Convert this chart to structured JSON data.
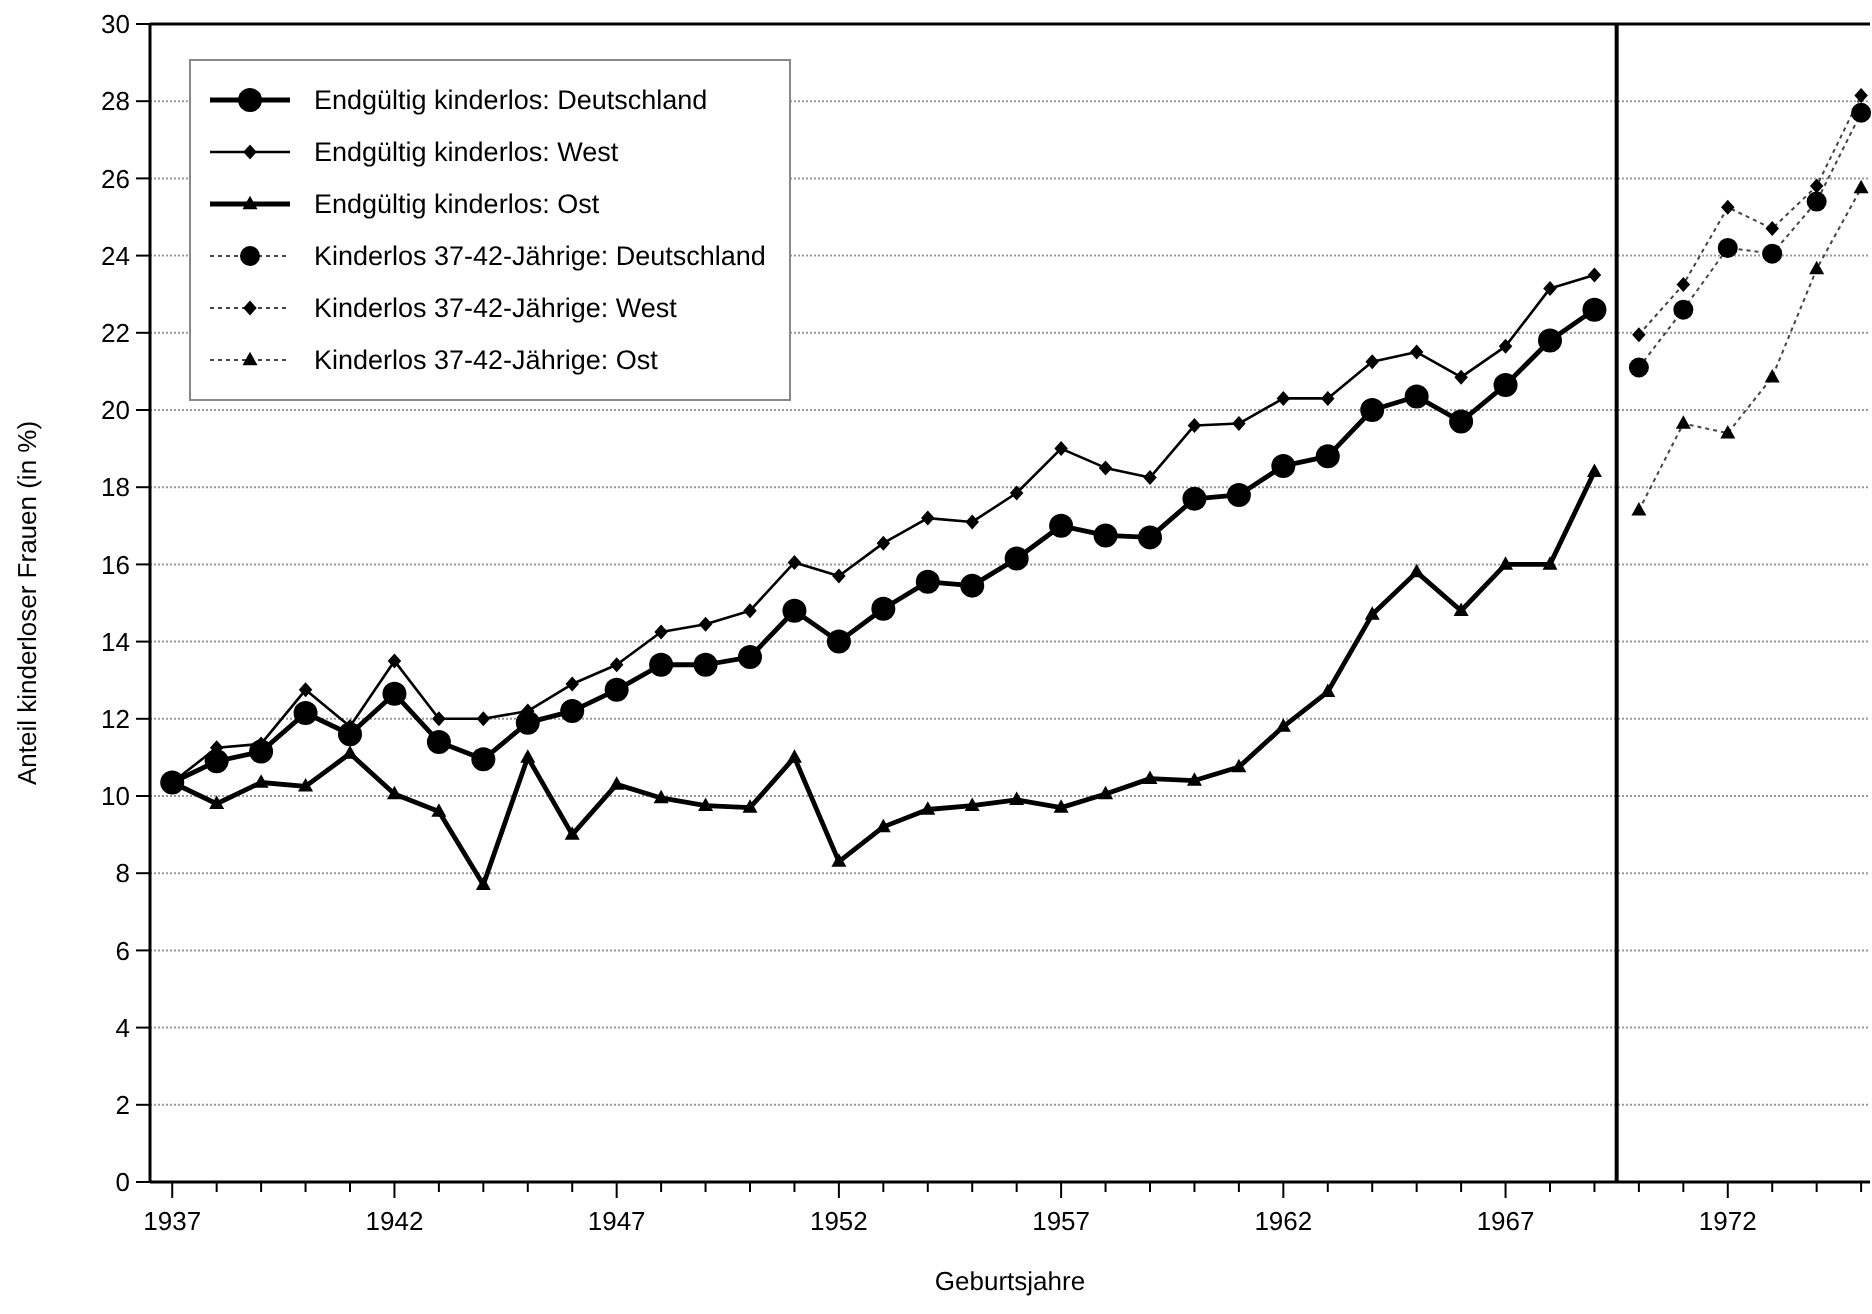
{
  "chart_data": {
    "type": "line",
    "xlabel": "Geburtsjahre",
    "ylabel": "Anteil kinderloser Frauen (in %)",
    "xlim": [
      1936.5,
      1975.2
    ],
    "ylim": [
      0,
      30
    ],
    "xticks": [
      1937,
      {
        "value": 1938,
        "label": null
      },
      {
        "value": 1939,
        "label": null
      },
      {
        "value": 1940,
        "label": null
      },
      {
        "value": 1941,
        "label": null
      },
      1942,
      {
        "value": 1943,
        "label": null
      },
      {
        "value": 1944,
        "label": null
      },
      {
        "value": 1945,
        "label": null
      },
      {
        "value": 1946,
        "label": null
      },
      1947,
      {
        "value": 1948,
        "label": null
      },
      {
        "value": 1949,
        "label": null
      },
      {
        "value": 1950,
        "label": null
      },
      {
        "value": 1951,
        "label": null
      },
      1952,
      {
        "value": 1953,
        "label": null
      },
      {
        "value": 1954,
        "label": null
      },
      {
        "value": 1955,
        "label": null
      },
      {
        "value": 1956,
        "label": null
      },
      1957,
      {
        "value": 1958,
        "label": null
      },
      {
        "value": 1959,
        "label": null
      },
      {
        "value": 1960,
        "label": null
      },
      {
        "value": 1961,
        "label": null
      },
      1962,
      {
        "value": 1963,
        "label": null
      },
      {
        "value": 1964,
        "label": null
      },
      {
        "value": 1965,
        "label": null
      },
      {
        "value": 1966,
        "label": null
      },
      1967,
      {
        "value": 1968,
        "label": null
      },
      {
        "value": 1969,
        "label": null
      },
      {
        "value": 1970,
        "label": null
      },
      {
        "value": 1971,
        "label": null
      },
      1972,
      {
        "value": 1973,
        "label": null
      },
      {
        "value": 1974,
        "label": null
      },
      {
        "value": 1975,
        "label": null
      }
    ],
    "yticks": [
      0,
      2,
      4,
      6,
      8,
      10,
      12,
      14,
      16,
      18,
      20,
      22,
      24,
      26,
      28,
      30
    ],
    "grid": "y",
    "legend": "top left",
    "ref_lines": [
      {
        "axis": "x",
        "value": 1969.5,
        "color": "#000000",
        "line_style": "solid"
      }
    ],
    "series": [
      {
        "name": "Endgültig kinderlos: Deutschland",
        "color": "#000000",
        "marker": "circle",
        "line_style": "solid",
        "x": [
          1937,
          1938,
          1939,
          1940,
          1941,
          1942,
          1943,
          1944,
          1945,
          1946,
          1947,
          1948,
          1949,
          1950,
          1951,
          1952,
          1953,
          1954,
          1955,
          1956,
          1957,
          1958,
          1959,
          1960,
          1961,
          1962,
          1963,
          1964,
          1965,
          1966,
          1967,
          1968,
          1969
        ],
        "values": [
          10.35,
          10.9,
          11.15,
          12.15,
          11.6,
          12.65,
          11.4,
          10.95,
          11.9,
          12.2,
          12.75,
          13.4,
          13.4,
          13.6,
          14.8,
          14.0,
          14.85,
          15.55,
          15.45,
          16.15,
          17.0,
          16.75,
          16.7,
          17.7,
          17.8,
          18.55,
          18.8,
          20.0,
          20.35,
          19.7,
          20.65,
          21.8,
          22.6
        ]
      },
      {
        "name": "Endgültig kinderlos: West",
        "color": "#000000",
        "marker": "diamond",
        "line_style": "solid",
        "x": [
          1937,
          1938,
          1939,
          1940,
          1941,
          1942,
          1943,
          1944,
          1945,
          1946,
          1947,
          1948,
          1949,
          1950,
          1951,
          1952,
          1953,
          1954,
          1955,
          1956,
          1957,
          1958,
          1959,
          1960,
          1961,
          1962,
          1963,
          1964,
          1965,
          1966,
          1967,
          1968,
          1969
        ],
        "values": [
          10.35,
          11.25,
          11.35,
          12.75,
          11.8,
          13.5,
          12.0,
          12.0,
          12.2,
          12.9,
          13.4,
          14.25,
          14.45,
          14.8,
          16.05,
          15.7,
          16.55,
          17.2,
          17.1,
          17.85,
          19.0,
          18.5,
          18.25,
          19.6,
          19.65,
          20.3,
          20.3,
          21.25,
          21.5,
          20.85,
          21.65,
          23.15,
          23.5
        ]
      },
      {
        "name": "Endgültig kinderlos: Ost",
        "color": "#000000",
        "marker": "triangle",
        "line_style": "solid",
        "x": [
          1937,
          1938,
          1939,
          1940,
          1941,
          1942,
          1943,
          1944,
          1945,
          1946,
          1947,
          1948,
          1949,
          1950,
          1951,
          1952,
          1953,
          1954,
          1955,
          1956,
          1957,
          1958,
          1959,
          1960,
          1961,
          1962,
          1963,
          1964,
          1965,
          1966,
          1967,
          1968,
          1969
        ],
        "values": [
          10.35,
          9.8,
          10.35,
          10.25,
          11.1,
          10.05,
          9.6,
          7.7,
          11.0,
          9.0,
          10.3,
          9.95,
          9.75,
          9.7,
          11.0,
          8.3,
          9.2,
          9.65,
          9.75,
          9.9,
          9.7,
          10.05,
          10.45,
          10.4,
          10.75,
          11.8,
          12.7,
          14.7,
          15.8,
          14.8,
          16.0,
          16.0,
          18.4
        ]
      },
      {
        "name": "Kinderlos 37-42-Jährige: Deutschland",
        "color": "#444444",
        "marker": "circle",
        "line_style": "dotted",
        "x": [
          1970,
          1971,
          1972,
          1973,
          1974,
          1975
        ],
        "values": [
          21.1,
          22.6,
          24.2,
          24.05,
          25.4,
          27.7
        ]
      },
      {
        "name": "Kinderlos 37-42-Jährige: West",
        "color": "#444444",
        "marker": "diamond",
        "line_style": "dotted",
        "x": [
          1970,
          1971,
          1972,
          1973,
          1974,
          1975
        ],
        "values": [
          21.95,
          23.25,
          25.25,
          24.7,
          25.8,
          28.15
        ]
      },
      {
        "name": "Kinderlos 37-42-Jährige: Ost",
        "color": "#444444",
        "marker": "triangle",
        "line_style": "dotted",
        "x": [
          1970,
          1971,
          1972,
          1973,
          1974,
          1975
        ],
        "values": [
          17.4,
          19.65,
          19.4,
          20.85,
          23.65,
          25.75
        ]
      }
    ]
  }
}
